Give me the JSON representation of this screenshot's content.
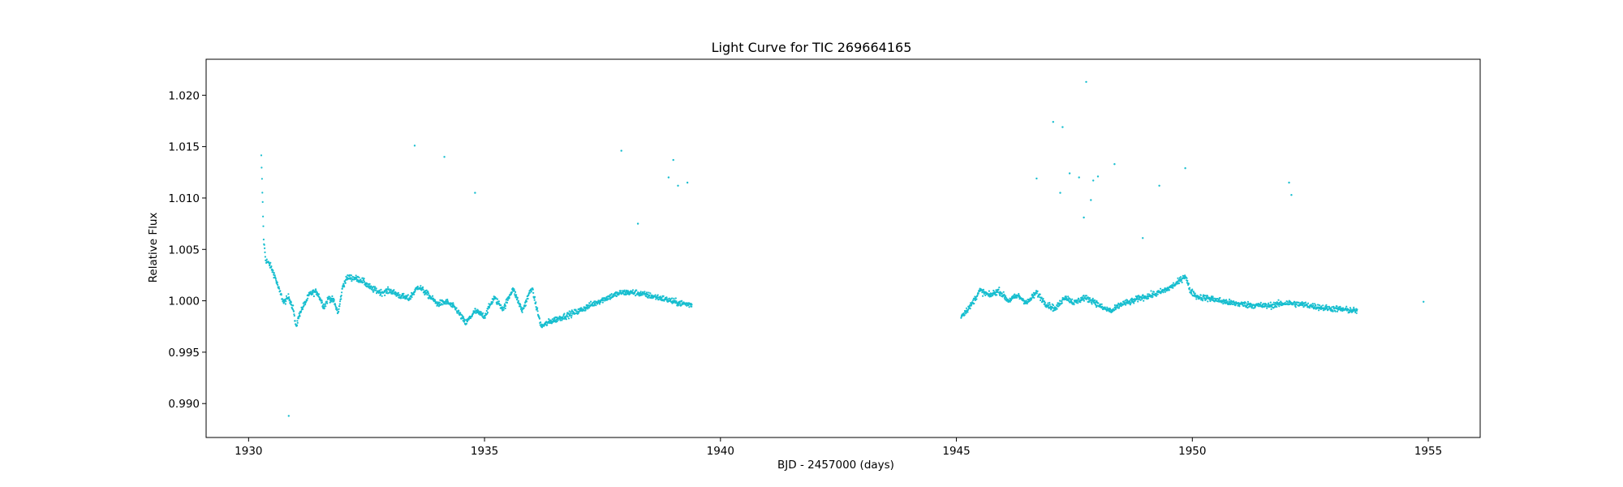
{
  "chart_data": {
    "type": "scatter",
    "title": "Light Curve for TIC 269664165",
    "xlabel": "BJD - 2457000 (days)",
    "ylabel": "Relative Flux",
    "xlim": [
      1929.1,
      1956.1
    ],
    "ylim": [
      0.9867,
      1.0235
    ],
    "xticks": [
      1930,
      1935,
      1940,
      1945,
      1950,
      1955
    ],
    "xtick_labels": [
      "1930",
      "1935",
      "1940",
      "1945",
      "1950",
      "1955"
    ],
    "yticks": [
      0.99,
      0.995,
      1.0,
      1.005,
      1.01,
      1.015,
      1.02
    ],
    "ytick_labels": [
      "0.990",
      "0.995",
      "1.000",
      "1.005",
      "1.010",
      "1.015",
      "1.020"
    ],
    "grid": false,
    "marker_color": "#17becf",
    "series": [
      {
        "name": "",
        "trend_segments": [
          {
            "x": [
              1930.27,
              1930.32,
              1930.36,
              1930.45,
              1930.55,
              1930.65,
              1930.75,
              1930.85,
              1930.95,
              1931.0,
              1931.1,
              1931.2,
              1931.3,
              1931.45,
              1931.6,
              1931.7,
              1931.8,
              1931.9,
              1932.0,
              1932.1,
              1932.25,
              1932.4,
              1932.6,
              1932.8,
              1933.0,
              1933.2,
              1933.4,
              1933.6,
              1933.8,
              1934.0,
              1934.2,
              1934.4,
              1934.6,
              1934.8,
              1935.0,
              1935.2,
              1935.4,
              1935.6,
              1935.8,
              1936.0,
              1936.2,
              1936.4,
              1936.7,
              1937.0,
              1937.3,
              1937.6,
              1937.9,
              1938.2,
              1938.5,
              1938.8,
              1939.1,
              1939.4
            ],
            "y": [
              1.014,
              1.006,
              1.004,
              1.0035,
              1.0025,
              1.001,
              0.9998,
              1.0004,
              0.9992,
              0.9974,
              0.999,
              0.9998,
              1.0007,
              1.0009,
              0.9994,
              1.0003,
              1.0,
              0.9988,
              1.0015,
              1.0023,
              1.0022,
              1.002,
              1.0012,
              1.0008,
              1.001,
              1.0005,
              1.0002,
              1.0014,
              1.0006,
              0.9997,
              0.9999,
              0.9992,
              0.9978,
              0.999,
              0.9985,
              1.0003,
              0.9992,
              1.0012,
              0.999,
              1.0013,
              0.9975,
              0.998,
              0.9985,
              0.999,
              0.9997,
              1.0003,
              1.0008,
              1.0008,
              1.0005,
              1.0002,
              0.9998,
              0.9996
            ]
          },
          {
            "x": [
              1945.1,
              1945.3,
              1945.5,
              1945.7,
              1945.9,
              1946.1,
              1946.3,
              1946.5,
              1946.7,
              1946.9,
              1947.1,
              1947.3,
              1947.5,
              1947.7,
              1947.9,
              1948.1,
              1948.3,
              1948.5,
              1948.7,
              1948.9,
              1949.1,
              1949.3,
              1949.5,
              1949.7,
              1949.85,
              1949.95,
              1950.1,
              1950.4,
              1950.8,
              1951.2,
              1951.6,
              1952.0,
              1952.4,
              1952.8,
              1953.1,
              1953.5
            ],
            "y": [
              0.9985,
              0.9995,
              1.001,
              1.0005,
              1.001,
              1.0,
              1.0005,
              0.9998,
              1.0008,
              0.9997,
              0.9992,
              1.0004,
              0.9998,
              1.0003,
              1.0,
              0.9993,
              0.999,
              0.9997,
              0.9999,
              1.0003,
              1.0005,
              1.0008,
              1.0012,
              1.0018,
              1.0025,
              1.001,
              1.0004,
              1.0002,
              0.9998,
              0.9996,
              0.9995,
              0.9998,
              0.9996,
              0.9993,
              0.9992,
              0.999
            ]
          }
        ],
        "outliers": [
          [
            1930.85,
            0.9888
          ],
          [
            1933.52,
            1.0151
          ],
          [
            1934.15,
            1.014
          ],
          [
            1934.8,
            1.0105
          ],
          [
            1937.9,
            1.0146
          ],
          [
            1938.25,
            1.0075
          ],
          [
            1938.9,
            1.012
          ],
          [
            1939.0,
            1.0137
          ],
          [
            1939.1,
            1.0112
          ],
          [
            1939.3,
            1.0115
          ],
          [
            1946.7,
            1.0119
          ],
          [
            1947.05,
            1.0174
          ],
          [
            1947.25,
            1.0169
          ],
          [
            1947.2,
            1.0105
          ],
          [
            1947.4,
            1.0124
          ],
          [
            1947.6,
            1.012
          ],
          [
            1947.7,
            1.0081
          ],
          [
            1947.75,
            1.0213
          ],
          [
            1947.85,
            1.0098
          ],
          [
            1947.9,
            1.0117
          ],
          [
            1948.0,
            1.0121
          ],
          [
            1948.35,
            1.0133
          ],
          [
            1948.95,
            1.0061
          ],
          [
            1949.3,
            1.0112
          ],
          [
            1949.85,
            1.0129
          ],
          [
            1952.05,
            1.0115
          ],
          [
            1952.1,
            1.0103
          ],
          [
            1954.9,
            0.9999
          ]
        ]
      }
    ]
  }
}
